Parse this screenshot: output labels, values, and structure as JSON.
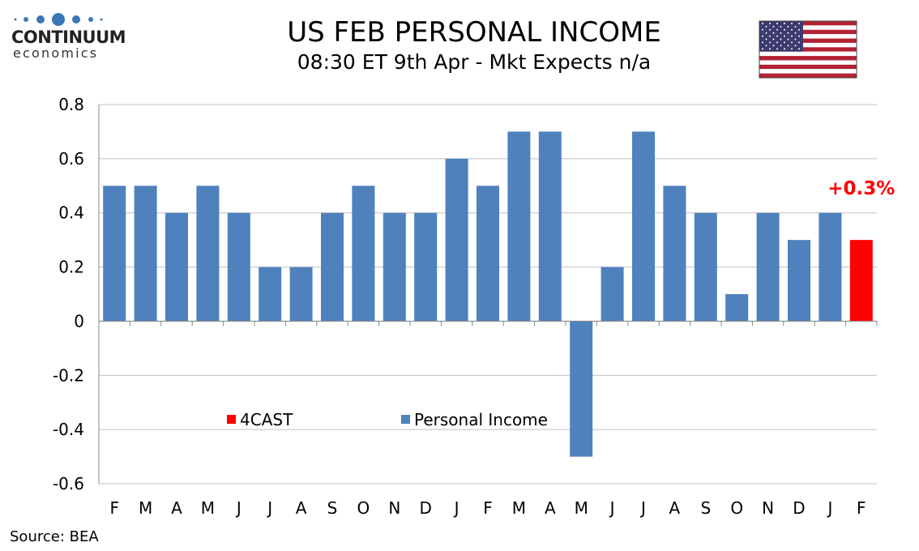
{
  "header": {
    "title": "US FEB PERSONAL INCOME",
    "subtitle": "08:30 ET 9th Apr - Mkt Expects n/a"
  },
  "logo": {
    "name": "CONTINUUM",
    "sub": "economics",
    "color": "#3a78b5"
  },
  "flag": "us-flag-icon",
  "source": "Source: BEA",
  "chart_data": {
    "type": "bar",
    "categories": [
      "F",
      "M",
      "A",
      "M",
      "J",
      "J",
      "A",
      "S",
      "O",
      "N",
      "D",
      "J",
      "F",
      "M",
      "A",
      "M",
      "J",
      "J",
      "A",
      "S",
      "O",
      "N",
      "D",
      "J",
      "F"
    ],
    "series": [
      {
        "name": "Personal Income",
        "color": "#4f81bd",
        "values": [
          0.5,
          0.5,
          0.4,
          0.5,
          0.4,
          0.2,
          0.2,
          0.4,
          0.5,
          0.4,
          0.4,
          0.6,
          0.5,
          0.7,
          0.7,
          -0.5,
          0.2,
          0.7,
          0.5,
          0.4,
          0.1,
          0.4,
          0.3,
          0.4,
          null
        ]
      },
      {
        "name": "4CAST",
        "color": "#ff0000",
        "values": [
          null,
          null,
          null,
          null,
          null,
          null,
          null,
          null,
          null,
          null,
          null,
          null,
          null,
          null,
          null,
          null,
          null,
          null,
          null,
          null,
          null,
          null,
          null,
          null,
          0.3
        ]
      }
    ],
    "annotation": "+0.3%",
    "ylim": [
      -0.6,
      0.8
    ],
    "yticks": [
      "0.8",
      "0.6",
      "0.4",
      "0.2",
      "0",
      "-0.2",
      "-0.4",
      "-0.6"
    ],
    "grid": true,
    "legend": "bottom-center"
  }
}
